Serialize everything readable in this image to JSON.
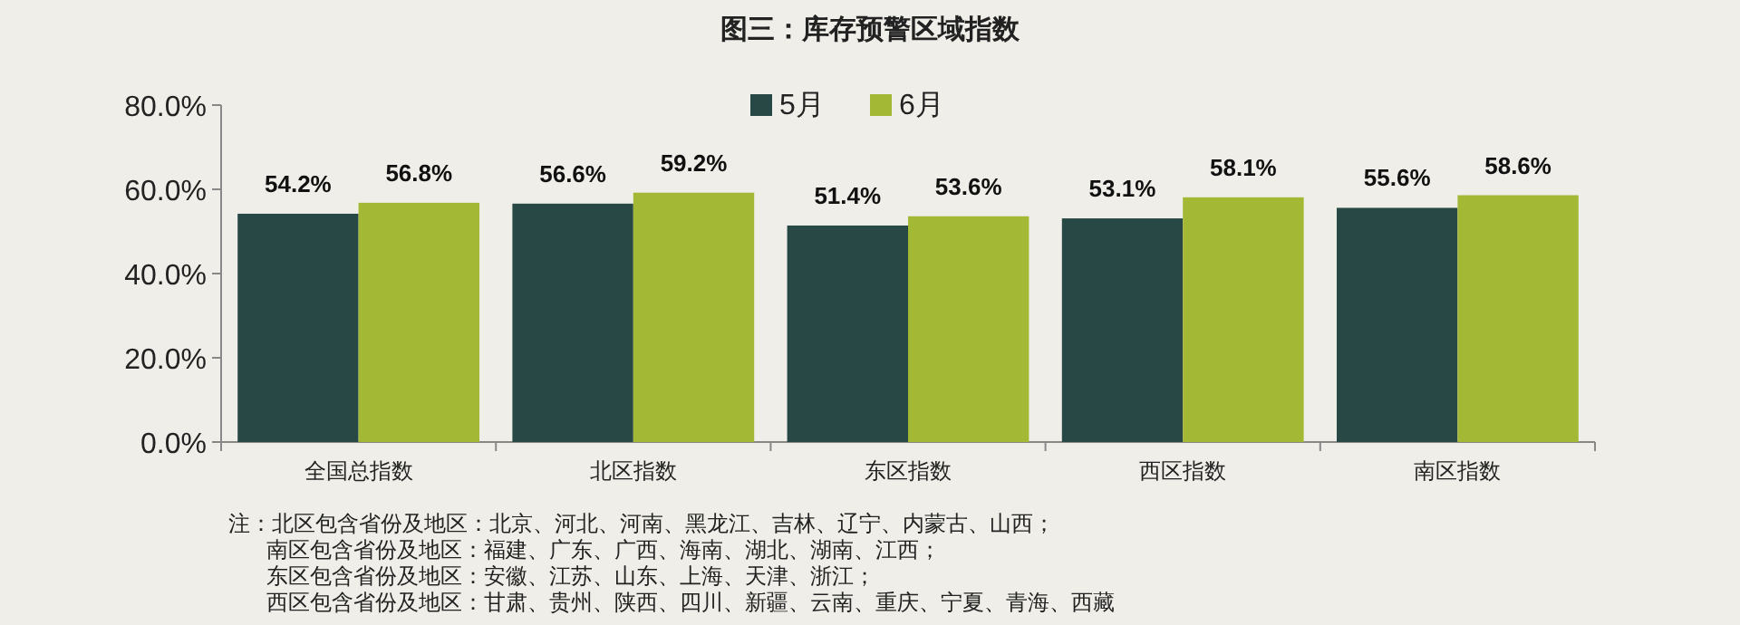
{
  "chart_data": {
    "type": "bar",
    "title": "图三：库存预警区域指数",
    "categories": [
      "全国总指数",
      "北区指数",
      "东区指数",
      "西区指数",
      "南区指数"
    ],
    "series": [
      {
        "name": "5月",
        "color": "#284846",
        "values": [
          54.2,
          56.6,
          51.4,
          53.1,
          55.6
        ],
        "value_labels": [
          "54.2%",
          "56.6%",
          "51.4%",
          "53.1%",
          "55.6%"
        ]
      },
      {
        "name": "6月",
        "color": "#a3b936",
        "values": [
          56.8,
          59.2,
          53.6,
          58.1,
          58.6
        ],
        "value_labels": [
          "56.8%",
          "59.2%",
          "53.6%",
          "58.1%",
          "58.6%"
        ]
      }
    ],
    "ylim": [
      0,
      80
    ],
    "yticks": [
      {
        "value": 0,
        "label": "0.0%"
      },
      {
        "value": 20,
        "label": "20.0%"
      },
      {
        "value": 40,
        "label": "40.0%"
      },
      {
        "value": 60,
        "label": "60.0%"
      },
      {
        "value": 80,
        "label": "80.0%"
      }
    ],
    "grid": false,
    "legend": "top",
    "annotations": [
      "注：北区包含省份及地区：北京、河北、河南、黑龙江、吉林、辽宁、内蒙古、山西；",
      "南区包含省份及地区：福建、广东、广西、海南、湖北、湖南、江西；",
      "东区包含省份及地区：安徽、江苏、山东、上海、天津、浙江；",
      "西区包含省份及地区：甘肃、贵州、陕西、四川、新疆、云南、重庆、宁夏、青海、西藏"
    ]
  }
}
